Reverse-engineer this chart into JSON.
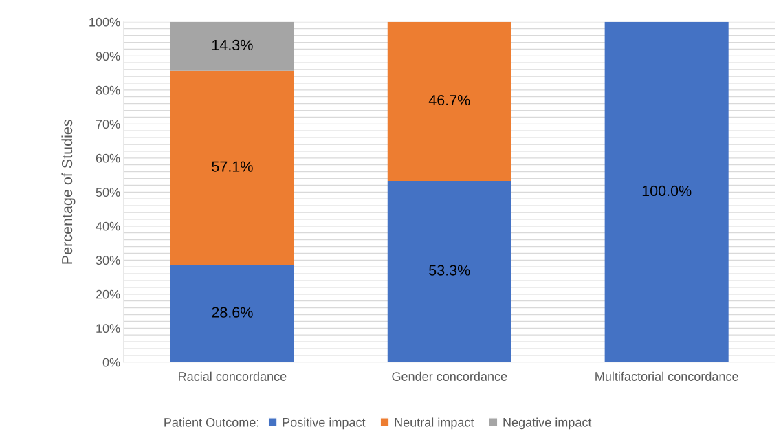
{
  "chart_data": {
    "type": "bar",
    "stacked": true,
    "ylabel": "Percentage of Studies",
    "legend_title": "Patient Outcome:",
    "legend": "bottom",
    "grid": "y",
    "categories": [
      "Racial concordance",
      "Gender concordance",
      "Multifactorial concordance"
    ],
    "series": [
      {
        "name": "Positive impact",
        "color": "#4472c4",
        "values": [
          28.6,
          53.3,
          100.0
        ],
        "value_labels": [
          "28.6%",
          "53.3%",
          "100.0%"
        ]
      },
      {
        "name": "Neutral impact",
        "color": "#ed7d31",
        "values": [
          57.1,
          46.7,
          null
        ],
        "value_labels": [
          "57.1%",
          "46.7%",
          null
        ]
      },
      {
        "name": "Negative impact",
        "color": "#a5a5a5",
        "values": [
          14.3,
          null,
          null
        ],
        "value_labels": [
          "14.3%",
          null,
          null
        ]
      }
    ],
    "ylim": [
      0,
      100
    ],
    "yticks": [
      {
        "value": 0,
        "label": "0%"
      },
      {
        "value": 2,
        "label": null
      },
      {
        "value": 4,
        "label": null
      },
      {
        "value": 6,
        "label": null
      },
      {
        "value": 8,
        "label": null
      },
      {
        "value": 10,
        "label": "10%"
      },
      {
        "value": 12,
        "label": null
      },
      {
        "value": 14,
        "label": null
      },
      {
        "value": 16,
        "label": null
      },
      {
        "value": 18,
        "label": null
      },
      {
        "value": 20,
        "label": "20%"
      },
      {
        "value": 22,
        "label": null
      },
      {
        "value": 24,
        "label": null
      },
      {
        "value": 26,
        "label": null
      },
      {
        "value": 28,
        "label": null
      },
      {
        "value": 30,
        "label": "30%"
      },
      {
        "value": 32,
        "label": null
      },
      {
        "value": 34,
        "label": null
      },
      {
        "value": 36,
        "label": null
      },
      {
        "value": 38,
        "label": null
      },
      {
        "value": 40,
        "label": "40%"
      },
      {
        "value": 42,
        "label": null
      },
      {
        "value": 44,
        "label": null
      },
      {
        "value": 46,
        "label": null
      },
      {
        "value": 48,
        "label": null
      },
      {
        "value": 50,
        "label": "50%"
      },
      {
        "value": 52,
        "label": null
      },
      {
        "value": 54,
        "label": null
      },
      {
        "value": 56,
        "label": null
      },
      {
        "value": 58,
        "label": null
      },
      {
        "value": 60,
        "label": "60%"
      },
      {
        "value": 62,
        "label": null
      },
      {
        "value": 64,
        "label": null
      },
      {
        "value": 66,
        "label": null
      },
      {
        "value": 68,
        "label": null
      },
      {
        "value": 70,
        "label": "70%"
      },
      {
        "value": 72,
        "label": null
      },
      {
        "value": 74,
        "label": null
      },
      {
        "value": 76,
        "label": null
      },
      {
        "value": 78,
        "label": null
      },
      {
        "value": 80,
        "label": "80%"
      },
      {
        "value": 82,
        "label": null
      },
      {
        "value": 84,
        "label": null
      },
      {
        "value": 86,
        "label": null
      },
      {
        "value": 88,
        "label": null
      },
      {
        "value": 90,
        "label": "90%"
      },
      {
        "value": 92,
        "label": null
      },
      {
        "value": 94,
        "label": null
      },
      {
        "value": 96,
        "label": null
      },
      {
        "value": 98,
        "label": null
      },
      {
        "value": 100,
        "label": "100%"
      }
    ]
  }
}
